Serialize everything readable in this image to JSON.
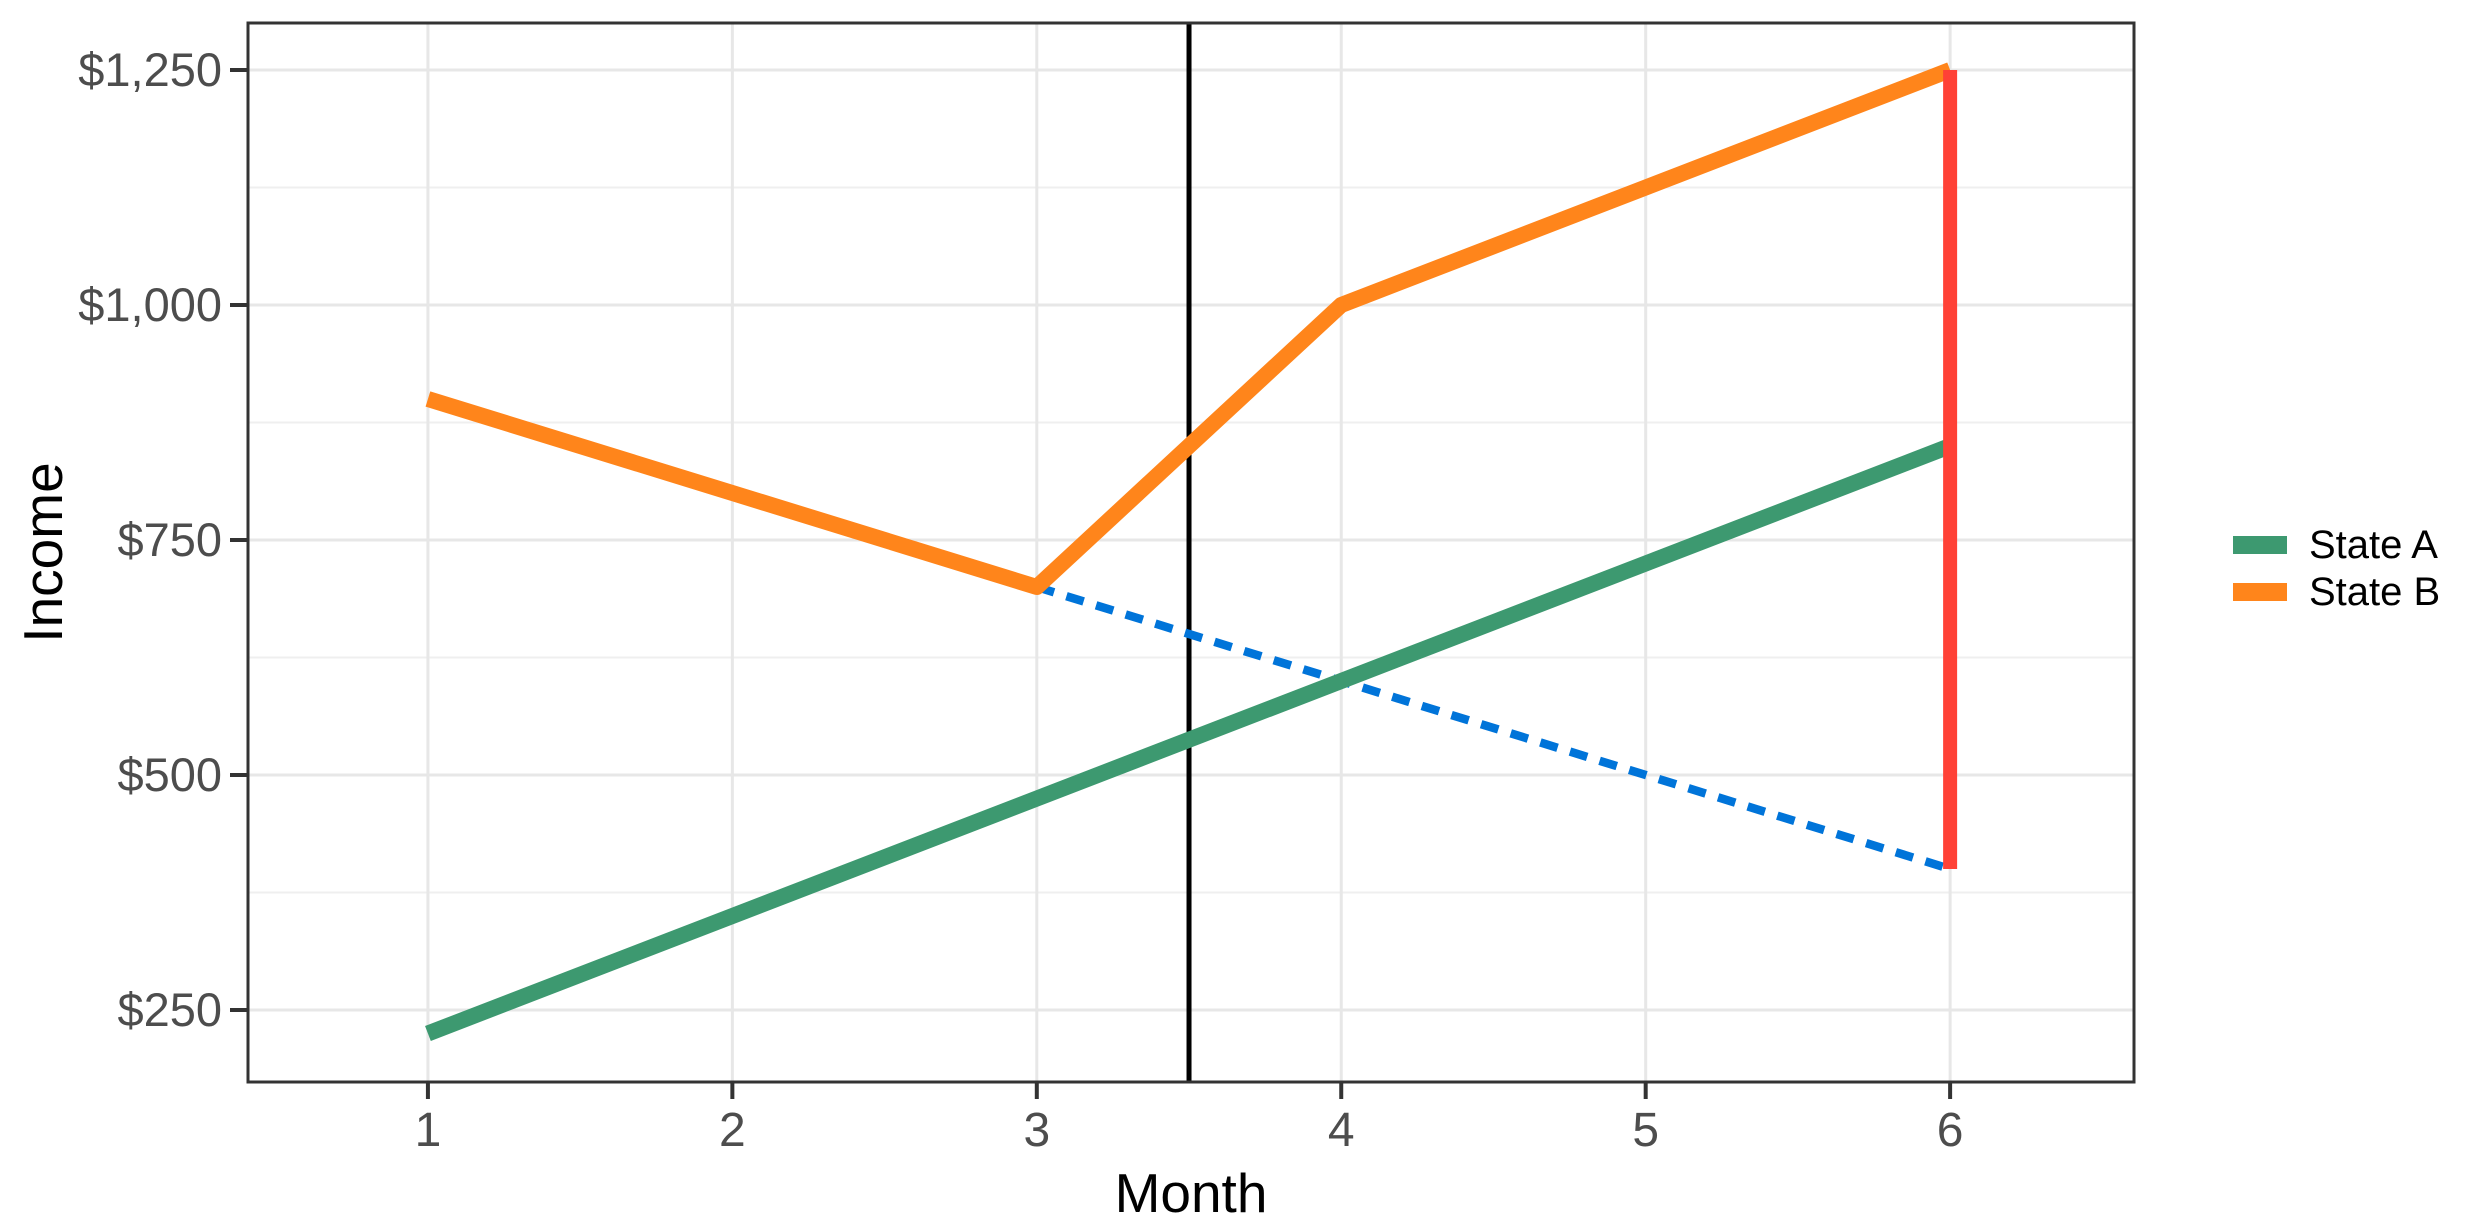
{
  "chart_data": {
    "type": "line",
    "title": "",
    "xlabel": "Month",
    "ylabel": "Income",
    "xlim": [
      0.409,
      6.604
    ],
    "ylim": [
      173.4,
      1300
    ],
    "grid": {
      "major_color": "#E7E7E7",
      "minor_color": "#EFEFEF",
      "background": "#FFFFFF",
      "panel_border_color": "#333333"
    },
    "x_ticks": [
      {
        "value": 1,
        "label": "1"
      },
      {
        "value": 2,
        "label": "2"
      },
      {
        "value": 3,
        "label": "3"
      },
      {
        "value": 4,
        "label": "4"
      },
      {
        "value": 5,
        "label": "5"
      },
      {
        "value": 6,
        "label": "6"
      }
    ],
    "y_ticks": [
      {
        "value": 250,
        "label": "$250"
      },
      {
        "value": 500,
        "label": "$500"
      },
      {
        "value": 750,
        "label": "$750"
      },
      {
        "value": 1000,
        "label": "$1,000"
      },
      {
        "value": 1250,
        "label": "$1,250"
      }
    ],
    "y_minor_gridlines": [
      375,
      625,
      875,
      1125
    ],
    "series": [
      {
        "name": "State A",
        "color": "#3D9970",
        "x": [
          1,
          6
        ],
        "y": [
          225,
          850
        ]
      },
      {
        "name": "State B",
        "color": "#FF851B",
        "x": [
          1,
          3,
          4,
          6
        ],
        "y": [
          900,
          700,
          1000,
          1250
        ]
      }
    ],
    "annotations": [
      {
        "name": "treatment-vline",
        "type": "vline",
        "x": 3.5,
        "color": "#000000",
        "dashed": false,
        "width": 5,
        "z": "behind"
      },
      {
        "name": "counterfactual-dashed-line",
        "type": "segment",
        "x1": 3,
        "y1": 700,
        "x2": 6,
        "y2": 400,
        "color": "#0074D9",
        "dashed": true,
        "width": 8.5,
        "z": "behind"
      },
      {
        "name": "effect-line",
        "type": "segment",
        "x1": 6,
        "y1": 400,
        "x2": 6,
        "y2": 1250,
        "color": "#FF4136",
        "dashed": false,
        "width": 14,
        "z": "front"
      }
    ],
    "legend": {
      "position": "right",
      "entries": [
        {
          "label": "State A",
          "color": "#3D9970"
        },
        {
          "label": "State B",
          "color": "#FF851B"
        }
      ]
    }
  }
}
